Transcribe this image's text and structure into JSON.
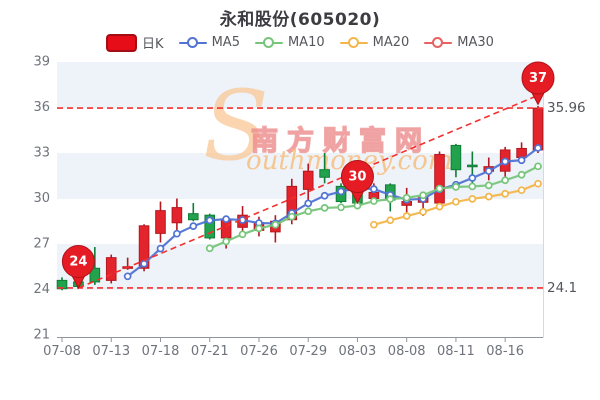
{
  "title": "永和股份(605020)",
  "legend": [
    {
      "label": "日K",
      "type": "candle",
      "color": "#e60d18",
      "border": "#a50d14"
    },
    {
      "label": "MA5",
      "type": "line",
      "color": "#5173d3"
    },
    {
      "label": "MA10",
      "type": "line",
      "color": "#77c57b"
    },
    {
      "label": "MA20",
      "type": "line",
      "color": "#f3b64c"
    },
    {
      "label": "MA30",
      "type": "line",
      "color": "#e86060"
    }
  ],
  "watermark": {
    "s": "S",
    "cn": "南方财富网",
    "en": "outhmoney.com"
  },
  "colors": {
    "up": "#e3242c",
    "up_border": "#b5171f",
    "down": "#23a24d",
    "down_border": "#0e7d36",
    "band": "#eef2f9",
    "dashed": "#f4302e",
    "balloon_fill": "#e51c23",
    "balloon_border": "#ad1218",
    "balloon_text": "#ffffff",
    "axis_text": "#6f737b",
    "axis_line": "#90959d",
    "plot_border": "#d5dae2",
    "price_label": "#54565e"
  },
  "chart_data": {
    "type": "candlestick",
    "title": "永和股份(605020)",
    "ylim": [
      21,
      39
    ],
    "y_ticks": [
      21,
      24,
      27,
      30,
      33,
      36,
      39
    ],
    "x_ticks": [
      {
        "index": 0,
        "label": "07-08"
      },
      {
        "index": 3,
        "label": "07-13"
      },
      {
        "index": 6,
        "label": "07-18"
      },
      {
        "index": 9,
        "label": "07-21"
      },
      {
        "index": 12,
        "label": "07-26"
      },
      {
        "index": 15,
        "label": "07-29"
      },
      {
        "index": 18,
        "label": "08-03"
      },
      {
        "index": 21,
        "label": "08-08"
      },
      {
        "index": 24,
        "label": "08-11"
      },
      {
        "index": 27,
        "label": "08-16"
      }
    ],
    "candles": [
      {
        "o": 24.6,
        "h": 24.8,
        "l": 23.95,
        "c": 24.05
      },
      {
        "o": 24.5,
        "h": 24.6,
        "l": 24.1,
        "c": 24.2
      },
      {
        "o": 25.4,
        "h": 26.8,
        "l": 24.3,
        "c": 24.5
      },
      {
        "o": 24.6,
        "h": 26.3,
        "l": 24.4,
        "c": 26.1
      },
      {
        "o": 25.45,
        "h": 26.1,
        "l": 25.3,
        "c": 25.5
      },
      {
        "o": 25.4,
        "h": 28.3,
        "l": 25.2,
        "c": 28.2
      },
      {
        "o": 27.7,
        "h": 29.8,
        "l": 27.1,
        "c": 29.2
      },
      {
        "o": 28.4,
        "h": 30.0,
        "l": 27.5,
        "c": 29.4
      },
      {
        "o": 29.0,
        "h": 29.7,
        "l": 28.5,
        "c": 28.6
      },
      {
        "o": 28.9,
        "h": 29.0,
        "l": 27.3,
        "c": 27.4
      },
      {
        "o": 27.4,
        "h": 28.8,
        "l": 26.7,
        "c": 28.6
      },
      {
        "o": 28.1,
        "h": 29.5,
        "l": 27.4,
        "c": 28.9
      },
      {
        "o": 27.9,
        "h": 28.8,
        "l": 27.5,
        "c": 28.4
      },
      {
        "o": 27.8,
        "h": 28.9,
        "l": 27.1,
        "c": 28.5
      },
      {
        "o": 28.6,
        "h": 31.3,
        "l": 28.3,
        "c": 30.8
      },
      {
        "o": 30.6,
        "h": 32.3,
        "l": 29.8,
        "c": 31.8
      },
      {
        "o": 31.9,
        "h": 33.0,
        "l": 31.0,
        "c": 31.4
      },
      {
        "o": 30.8,
        "h": 31.0,
        "l": 29.7,
        "c": 29.8
      },
      {
        "o": 30.6,
        "h": 30.7,
        "l": 29.6,
        "c": 29.7
      },
      {
        "o": 30.0,
        "h": 31.0,
        "l": 29.6,
        "c": 30.4
      },
      {
        "o": 30.9,
        "h": 31.0,
        "l": 29.15,
        "c": 29.9
      },
      {
        "o": 29.55,
        "h": 30.7,
        "l": 28.9,
        "c": 29.8
      },
      {
        "o": 29.75,
        "h": 30.3,
        "l": 28.85,
        "c": 30.05
      },
      {
        "o": 29.7,
        "h": 33.1,
        "l": 29.55,
        "c": 32.9
      },
      {
        "o": 33.5,
        "h": 33.6,
        "l": 31.4,
        "c": 31.9
      },
      {
        "o": 32.2,
        "h": 33.1,
        "l": 31.0,
        "c": 32.1
      },
      {
        "o": 31.8,
        "h": 32.7,
        "l": 31.2,
        "c": 32.1
      },
      {
        "o": 31.8,
        "h": 33.4,
        "l": 31.0,
        "c": 33.2
      },
      {
        "o": 32.7,
        "h": 33.7,
        "l": 32.5,
        "c": 33.3
      },
      {
        "o": 33.2,
        "h": 36.1,
        "l": 33.0,
        "c": 35.96
      }
    ],
    "moving_averages": [
      {
        "name": "MA5",
        "window": 5,
        "color": "#5173d3"
      },
      {
        "name": "MA10",
        "window": 10,
        "color": "#77c57b"
      },
      {
        "name": "MA20",
        "window": 20,
        "color": "#f3b64c"
      },
      {
        "name": "MA30",
        "window": 30,
        "color": "#e86060"
      }
    ],
    "balloons": [
      {
        "index": 1,
        "label": "24",
        "tip_value": 24.1
      },
      {
        "index": 18,
        "label": "30",
        "tip_value": 29.7
      },
      {
        "index": 29,
        "label": "37",
        "tip_value": 36.2
      }
    ],
    "hlines": [
      {
        "value": 35.96,
        "label": "35.96"
      },
      {
        "value": 24.1,
        "label": "24.1"
      }
    ],
    "trendline": {
      "from": {
        "index": 1,
        "value": 24.1
      },
      "to": {
        "index": 29,
        "value": 36.8
      }
    },
    "legend_position": "top",
    "grid_bands": true
  }
}
